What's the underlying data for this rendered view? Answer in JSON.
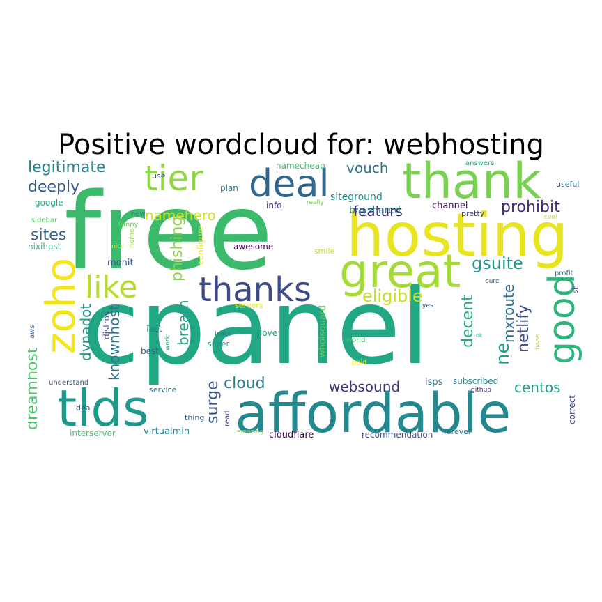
{
  "title": "Positive wordcloud for: webhosting",
  "words": [
    {
      "text": "free",
      "color": "#3cba6b"
    },
    {
      "text": "cpanel",
      "color": "#22a784"
    },
    {
      "text": "hosting",
      "color": "#e8e41f"
    },
    {
      "text": "thank",
      "color": "#7ad151"
    },
    {
      "text": "affordable",
      "color": "#23898e"
    },
    {
      "text": "tlds",
      "color": "#1f9a8a"
    },
    {
      "text": "great",
      "color": "#a5db36"
    },
    {
      "text": "deal",
      "color": "#31668e"
    },
    {
      "text": "zoho",
      "color": "#f2e51d"
    },
    {
      "text": "thanks",
      "color": "#3f4a8a"
    },
    {
      "text": "tier",
      "color": "#8fd744"
    },
    {
      "text": "like",
      "color": "#b5de2b"
    },
    {
      "text": "good",
      "color": "#2fb47c"
    },
    {
      "text": "gsuite",
      "color": "#1f958b"
    },
    {
      "text": "eligible",
      "color": "#c8e020"
    },
    {
      "text": "legitimate",
      "color": "#26828e"
    },
    {
      "text": "deeply",
      "color": "#365c8d"
    },
    {
      "text": "namehero",
      "color": "#d0e11c"
    },
    {
      "text": "vouch",
      "color": "#2a768e"
    },
    {
      "text": "prohibit",
      "color": "#472d7b"
    },
    {
      "text": "featurs",
      "color": "#482576"
    },
    {
      "text": "sites",
      "color": "#34618d"
    },
    {
      "text": "phishing",
      "color": "#8bd646"
    },
    {
      "text": "mxroute",
      "color": "#2d708e"
    },
    {
      "text": "netlify",
      "color": "#3e4c8a"
    },
    {
      "text": "ne",
      "color": "#1f9e89"
    },
    {
      "text": "decent",
      "color": "#25ab82"
    },
    {
      "text": "dynadot",
      "color": "#1e9b8a"
    },
    {
      "text": "knownhost",
      "color": "#2c738e"
    },
    {
      "text": "breath",
      "color": "#1fa187"
    },
    {
      "text": "dreamhost",
      "color": "#4ec36b"
    },
    {
      "text": "surge",
      "color": "#39568c"
    },
    {
      "text": "cloud",
      "color": "#287d8e"
    },
    {
      "text": "websound",
      "color": "#46307e"
    },
    {
      "text": "centos",
      "color": "#1fa088"
    },
    {
      "text": "siteground",
      "color": "#21918c"
    },
    {
      "text": "buyshared",
      "color": "#27808e"
    },
    {
      "text": "namecheap",
      "color": "#3dbc74"
    },
    {
      "text": "plan",
      "color": "#2a788e"
    },
    {
      "text": "info",
      "color": "#433e85"
    },
    {
      "text": "channel",
      "color": "#471063"
    },
    {
      "text": "pretty",
      "color": "#414487"
    },
    {
      "text": "use",
      "color": "#3a548c"
    },
    {
      "text": "google",
      "color": "#22a884"
    },
    {
      "text": "nixihost",
      "color": "#32b67a"
    },
    {
      "text": "monit",
      "color": "#3b528b"
    },
    {
      "text": "awesome",
      "color": "#440154"
    },
    {
      "text": "configure",
      "color": "#f1e51d"
    },
    {
      "text": "home",
      "color": "#90d743"
    },
    {
      "text": "nice",
      "color": "#fde725"
    },
    {
      "text": "funny",
      "color": "#70cf57"
    },
    {
      "text": "new",
      "color": "#2c728e"
    },
    {
      "text": "sidebar",
      "color": "#5cc863"
    },
    {
      "text": "smile",
      "color": "#c0df25"
    },
    {
      "text": "useful",
      "color": "#2d708e"
    },
    {
      "text": "cool",
      "color": "#addc30"
    },
    {
      "text": "profit",
      "color": "#31688e"
    },
    {
      "text": "sure",
      "color": "#355f8d"
    },
    {
      "text": "sh",
      "color": "#443983"
    },
    {
      "text": "really",
      "color": "#73d056"
    },
    {
      "text": "answers",
      "color": "#20a386"
    },
    {
      "text": "servers",
      "color": "#e5e419"
    },
    {
      "text": "yes",
      "color": "#365d8d"
    },
    {
      "text": "distros",
      "color": "#3e4989"
    },
    {
      "text": "aws",
      "color": "#35608d"
    },
    {
      "text": "fast",
      "color": "#24878e"
    },
    {
      "text": "best",
      "color": "#33638d"
    },
    {
      "text": "work",
      "color": "#22a785"
    },
    {
      "text": "looks",
      "color": "#2a788e"
    },
    {
      "text": "super",
      "color": "#21918c"
    },
    {
      "text": "love",
      "color": "#1fa188"
    },
    {
      "text": "whoisguard",
      "color": "#63cb5f"
    },
    {
      "text": "world",
      "color": "#4ac16d"
    },
    {
      "text": "ok",
      "color": "#2fb47c"
    },
    {
      "text": "hope",
      "color": "#bddf26"
    },
    {
      "text": "paid",
      "color": "#fde725"
    },
    {
      "text": "understand",
      "color": "#3b518b"
    },
    {
      "text": "service",
      "color": "#2a778e"
    },
    {
      "text": "idea",
      "color": "#3b528b"
    },
    {
      "text": "isps",
      "color": "#2c728e"
    },
    {
      "text": "subscribed",
      "color": "#23888e"
    },
    {
      "text": "github",
      "color": "#482475"
    },
    {
      "text": "thing",
      "color": "#33638d"
    },
    {
      "text": "read",
      "color": "#453581"
    },
    {
      "text": "correct",
      "color": "#3e4a89"
    },
    {
      "text": "interserver",
      "color": "#4ac16d"
    },
    {
      "text": "virtualmin",
      "color": "#25848e"
    },
    {
      "text": "amazing",
      "color": "#9bd93c"
    },
    {
      "text": "cloudflare",
      "color": "#440154"
    },
    {
      "text": "recommendation",
      "color": "#3b528b"
    },
    {
      "text": "forever",
      "color": "#29788e"
    }
  ]
}
